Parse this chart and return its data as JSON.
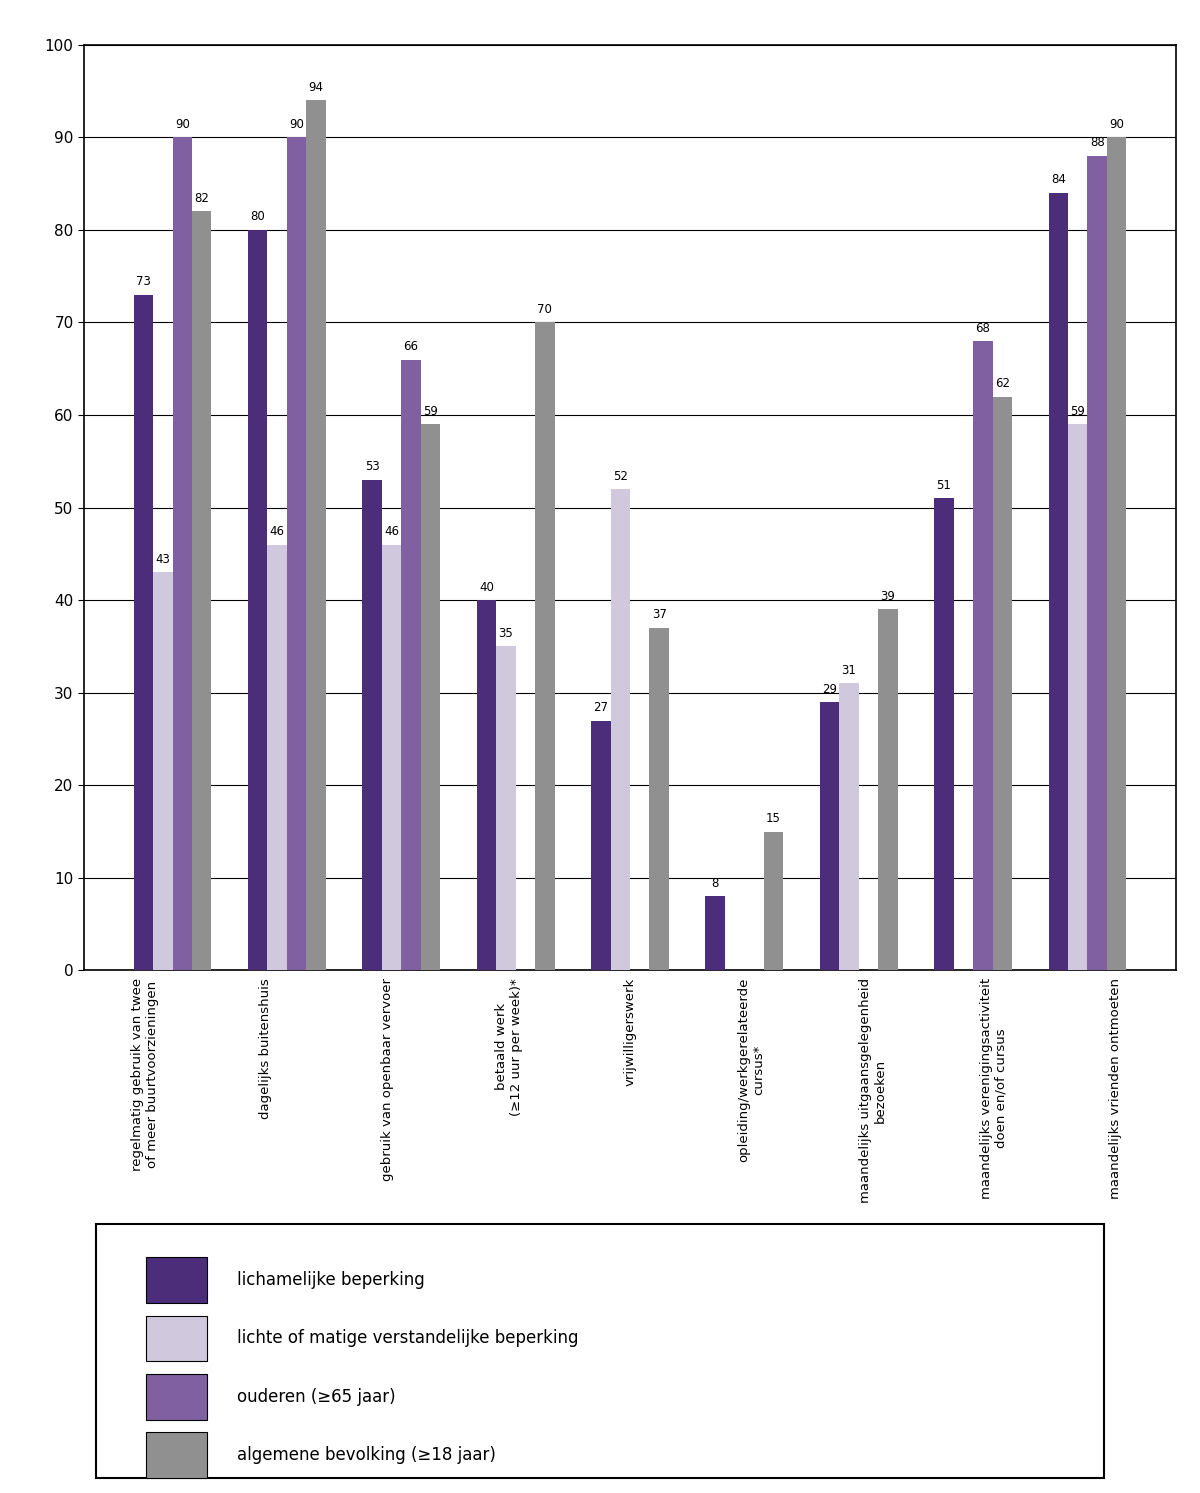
{
  "categories": [
    "regelmatig gebruik van twee\nof meer buurtvoorzieningen",
    "dagelijks buitenshuis",
    "gebruik van openbaar vervoer",
    "betaald werk\n(≥12 uur per week)*",
    "vrijwilligerswerk",
    "opleiding/werkgerelateerde\ncursus*",
    "maandelijks uitgaansgelegenheid\nbezoeken",
    "maandelijks verenigingsactiviteit\ndoen en/of cursus",
    "maandelijks vrienden ontmoeten"
  ],
  "lich_bep": [
    73,
    80,
    53,
    40,
    27,
    8,
    29,
    51,
    84
  ],
  "lichte_ver": [
    43,
    46,
    46,
    35,
    52,
    null,
    31,
    null,
    59
  ],
  "ouderen": [
    90,
    90,
    66,
    null,
    null,
    null,
    null,
    68,
    88
  ],
  "alg_bev": [
    82,
    94,
    59,
    70,
    37,
    15,
    39,
    62,
    90
  ],
  "color_lich": "#4B2D7A",
  "color_lichte": "#D0C8DC",
  "color_oud": "#8060A0",
  "color_alg": "#909090",
  "ylim": [
    0,
    100
  ],
  "yticks": [
    0,
    10,
    20,
    30,
    40,
    50,
    60,
    70,
    80,
    90,
    100
  ],
  "bar_width": 0.17,
  "figsize": [
    12.0,
    14.93
  ],
  "dpi": 100,
  "legend_labels": [
    "lichamelijke beperking",
    "lichte of matige verstandelijke beperking",
    "ouderen (≥65 jaar)",
    "algemene bevolking (≥18 jaar)"
  ]
}
